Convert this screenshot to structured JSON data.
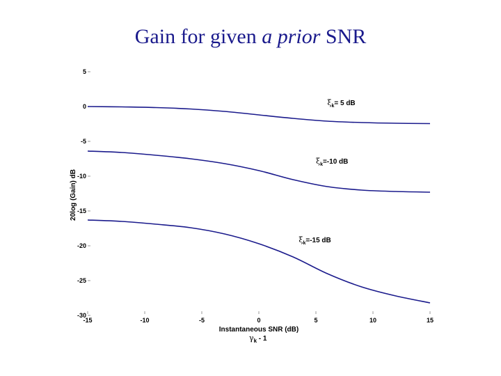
{
  "title": {
    "prefix": "Gain for given ",
    "italic": "a prior",
    "suffix": " SNR"
  },
  "chart_data": {
    "type": "line",
    "title": "Gain for given a prior SNR",
    "xlabel": "Instantaneous SNR (dB)",
    "xlabel2": {
      "symbol": "γ",
      "sub": "k",
      "rest": " - 1"
    },
    "ylabel": "20log (Gain) dB",
    "xlim": [
      -15,
      15
    ],
    "ylim": [
      -30,
      5
    ],
    "xticks": [
      -15,
      -10,
      -5,
      0,
      5,
      10,
      15
    ],
    "yticks": [
      5,
      0,
      -5,
      -10,
      -15,
      -20,
      -25,
      -30
    ],
    "line_color": "#1a1a8c",
    "series": [
      {
        "name": "ξk = 5 dB",
        "x": [
          -15,
          -12,
          -9,
          -6,
          -3,
          0,
          3,
          6,
          9,
          12,
          15
        ],
        "y": [
          0.0,
          -0.05,
          -0.15,
          -0.35,
          -0.7,
          -1.2,
          -1.7,
          -2.1,
          -2.3,
          -2.4,
          -2.45
        ]
      },
      {
        "name": "ξk = -10 dB",
        "x": [
          -15,
          -12,
          -9,
          -6,
          -3,
          0,
          3,
          6,
          9,
          12,
          15
        ],
        "y": [
          -6.4,
          -6.6,
          -7.0,
          -7.5,
          -8.2,
          -9.2,
          -10.5,
          -11.5,
          -12.0,
          -12.2,
          -12.3
        ]
      },
      {
        "name": "ξk = -15 dB",
        "x": [
          -15,
          -12,
          -9,
          -6,
          -3,
          0,
          3,
          6,
          9,
          12,
          15
        ],
        "y": [
          -16.3,
          -16.5,
          -16.9,
          -17.4,
          -18.3,
          -19.7,
          -21.6,
          -24.0,
          -25.9,
          -27.2,
          -28.2
        ]
      }
    ],
    "annotations": [
      {
        "symbol": "ξ",
        "sub": "k",
        "text": "= 5 dB",
        "x": 6,
        "y": 0.2
      },
      {
        "symbol": "ξ",
        "sub": "k",
        "text": "=-10 dB",
        "x": 5,
        "y": -8.2
      },
      {
        "symbol": "ξ",
        "sub": "k",
        "text": "=-15 dB",
        "x": 3.5,
        "y": -19.5
      }
    ]
  }
}
